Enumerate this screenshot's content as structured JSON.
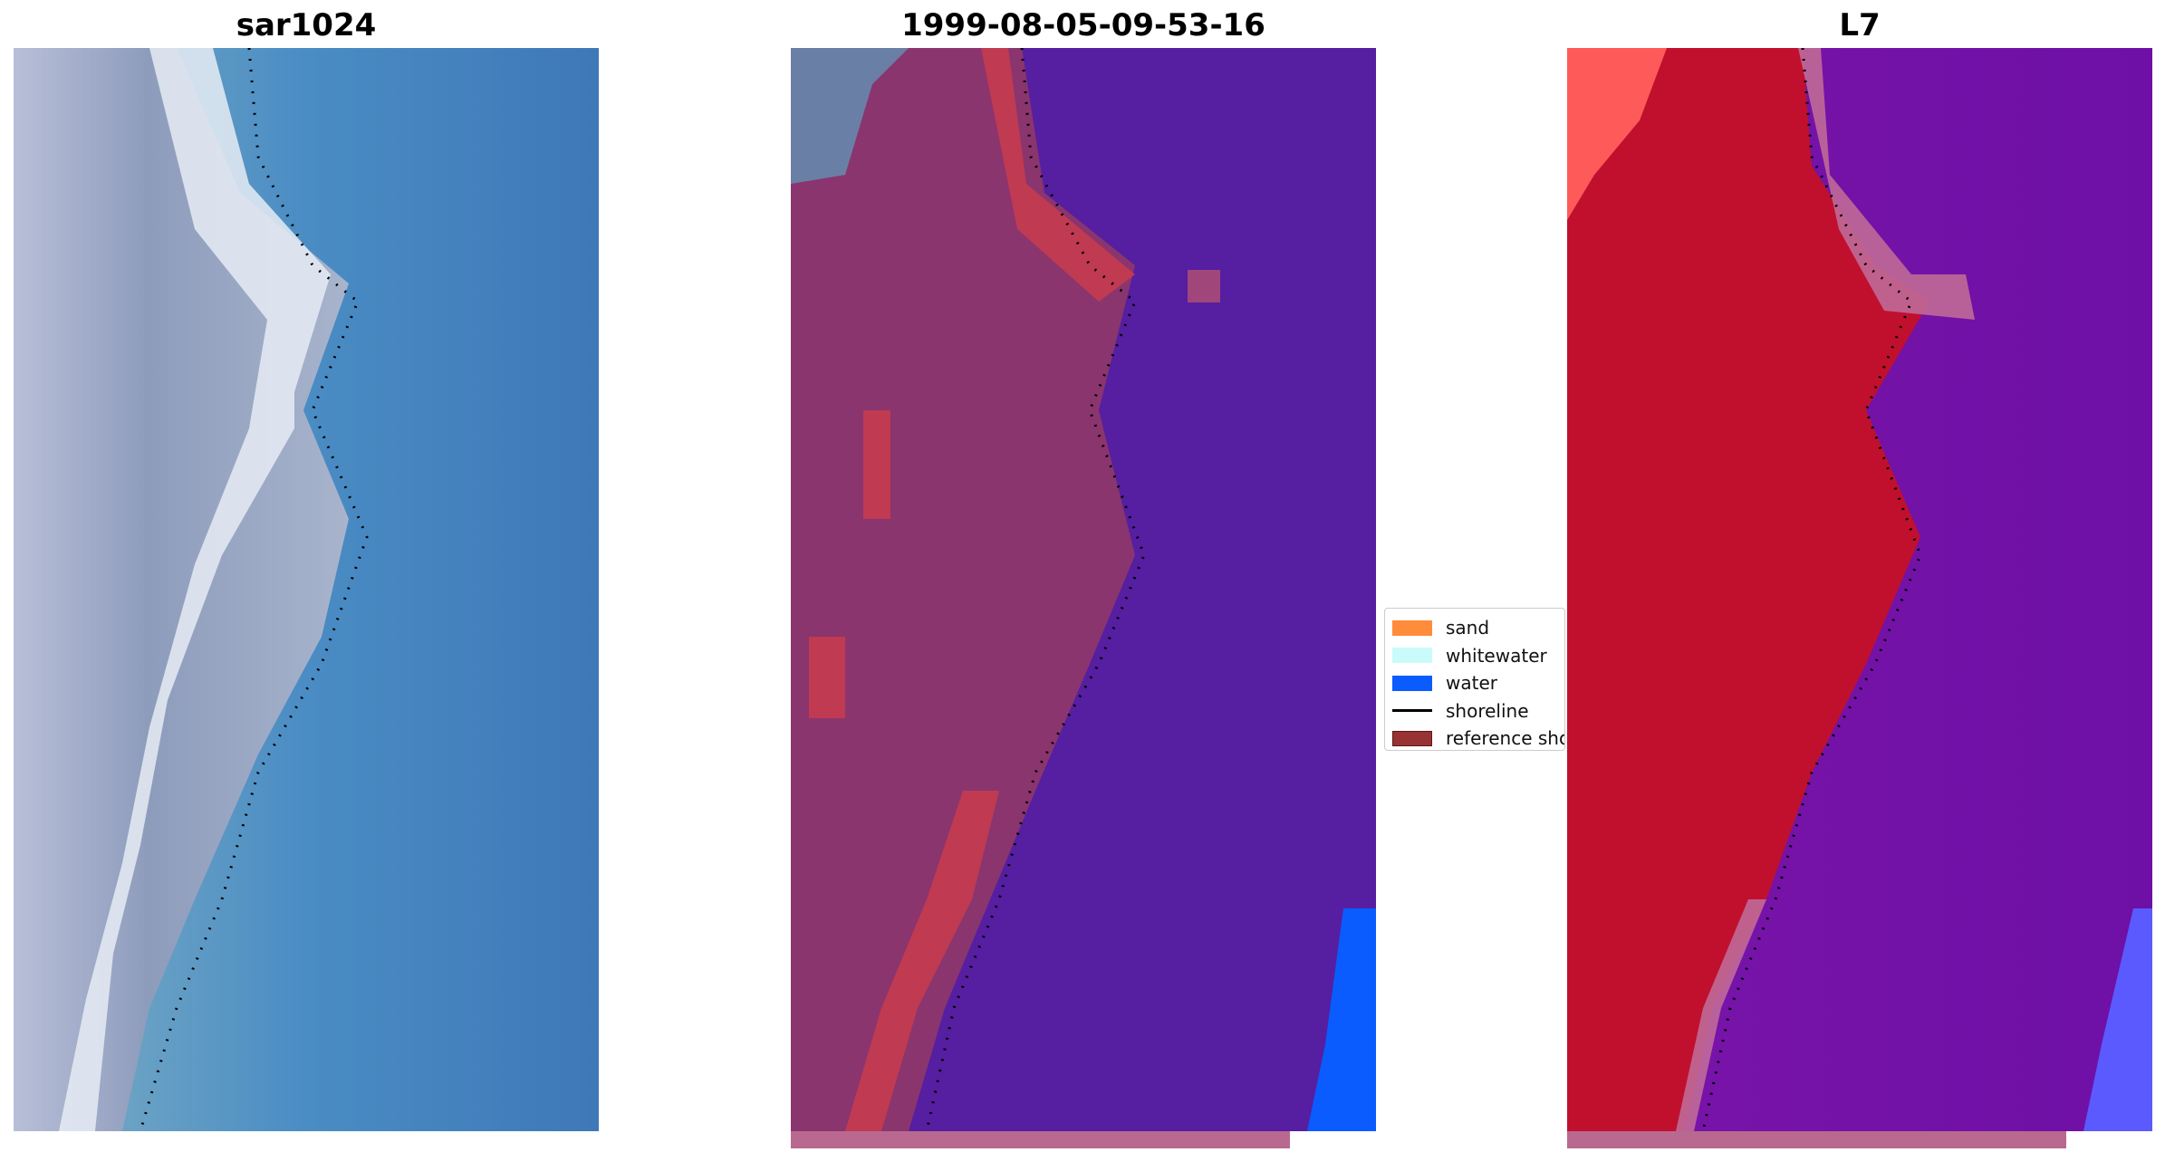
{
  "panels": [
    {
      "title": "sar1024",
      "kind": "rgb"
    },
    {
      "title": "1999-08-05-09-53-16",
      "kind": "classified"
    },
    {
      "title": "L7",
      "kind": "mndwi"
    }
  ],
  "legend": {
    "items": [
      {
        "label": "sand",
        "color": "#ff8c3a",
        "type": "patch"
      },
      {
        "label": "whitewater",
        "color": "#c9fbfb",
        "type": "patch"
      },
      {
        "label": "water",
        "color": "#0a5cff",
        "type": "patch"
      },
      {
        "label": "shoreline",
        "color": "#000000",
        "type": "line"
      },
      {
        "label": "reference shoreline buffer",
        "color": "#983233",
        "type": "patch"
      }
    ]
  },
  "colors": {
    "shoreline": "#000000",
    "buffer": "#b9698f",
    "classified_water": "#561ea0",
    "land_red": "#c0102e",
    "sea_purple": "#6e10a6"
  }
}
